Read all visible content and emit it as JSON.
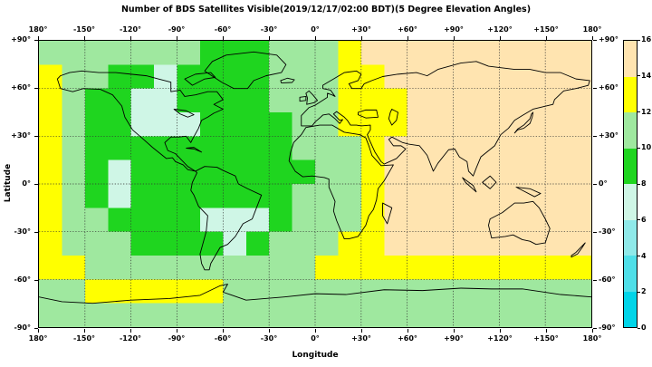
{
  "figure": {
    "title": "Number of BDS Satellites Visible(2019/12/17/02:00 BDT)(5 Degree Elevation Angles)"
  },
  "axes": {
    "x_label": "Longitude",
    "y_label": "Latitude",
    "lon_ticks": [
      {
        "v": -180,
        "label": "180°"
      },
      {
        "v": -150,
        "label": "-150°"
      },
      {
        "v": -120,
        "label": "-120°"
      },
      {
        "v": -90,
        "label": "-90°"
      },
      {
        "v": -60,
        "label": "-60°"
      },
      {
        "v": -30,
        "label": "-30°"
      },
      {
        "v": 0,
        "label": "0°"
      },
      {
        "v": 30,
        "label": "+30°"
      },
      {
        "v": 60,
        "label": "+60°"
      },
      {
        "v": 90,
        "label": "+90°"
      },
      {
        "v": 120,
        "label": "+120°"
      },
      {
        "v": 150,
        "label": "+150°"
      },
      {
        "v": 180,
        "label": "180°"
      }
    ],
    "lat_ticks": [
      {
        "v": 90,
        "label": "+90°"
      },
      {
        "v": 60,
        "label": "+60°"
      },
      {
        "v": 30,
        "label": "+30°"
      },
      {
        "v": 0,
        "label": "0°"
      },
      {
        "v": -30,
        "label": "-30°"
      },
      {
        "v": -60,
        "label": "-60°"
      },
      {
        "v": -90,
        "label": "-90°"
      }
    ]
  },
  "colorbar": {
    "min": 0,
    "max": 16,
    "band_width": 2,
    "tick_labels": [
      "16",
      "14",
      "12",
      "10",
      "8",
      "6",
      "4",
      "2",
      "0"
    ]
  },
  "chart_data": {
    "type": "heatmap",
    "title": "Number of BDS Satellites Visible(2019/12/17/02:00 BDT)(5 Degree Elevation Angles)",
    "xlabel": "Longitude",
    "ylabel": "Latitude",
    "x_range": [
      -180,
      180
    ],
    "y_range": [
      -90,
      90
    ],
    "value_range": [
      0,
      16
    ],
    "value_units": "visible BDS satellites",
    "cell_size_deg": 15,
    "grid_origin": "northwest (-180 lon, +90 lat)",
    "palette": [
      "#00D4E8",
      "#4FDFE8",
      "#8FE9E9",
      "#CFF6E6",
      "#1FD51F",
      "#9FE89F",
      "#FFFF00",
      "#FFE4B0"
    ],
    "coastline_color": "#000000",
    "grid_rows_north_to_south": [
      [
        11,
        11,
        11,
        11,
        11,
        11,
        11,
        9,
        9,
        9,
        11,
        11,
        11,
        13,
        15,
        15,
        15,
        15,
        15,
        15,
        15,
        15,
        15,
        15
      ],
      [
        13,
        11,
        11,
        9,
        9,
        7,
        9,
        9,
        9,
        9,
        11,
        11,
        11,
        13,
        13,
        15,
        15,
        15,
        15,
        15,
        15,
        15,
        15,
        15
      ],
      [
        13,
        11,
        9,
        9,
        7,
        7,
        9,
        9,
        9,
        9,
        11,
        11,
        11,
        13,
        13,
        13,
        15,
        15,
        15,
        15,
        15,
        15,
        15,
        15
      ],
      [
        13,
        11,
        9,
        9,
        7,
        7,
        7,
        9,
        9,
        9,
        9,
        11,
        11,
        13,
        13,
        13,
        15,
        15,
        15,
        15,
        15,
        15,
        15,
        15
      ],
      [
        13,
        11,
        9,
        9,
        9,
        9,
        9,
        9,
        9,
        9,
        9,
        11,
        11,
        11,
        13,
        15,
        15,
        15,
        15,
        15,
        15,
        15,
        15,
        15
      ],
      [
        13,
        11,
        9,
        7,
        9,
        9,
        9,
        9,
        9,
        9,
        9,
        9,
        11,
        11,
        13,
        15,
        15,
        15,
        15,
        15,
        15,
        15,
        15,
        15
      ],
      [
        13,
        11,
        9,
        7,
        9,
        9,
        9,
        9,
        9,
        9,
        9,
        11,
        11,
        11,
        13,
        15,
        15,
        15,
        15,
        15,
        15,
        15,
        15,
        15
      ],
      [
        13,
        11,
        11,
        9,
        9,
        9,
        9,
        7,
        7,
        7,
        9,
        11,
        11,
        11,
        13,
        15,
        15,
        15,
        15,
        15,
        15,
        15,
        15,
        15
      ],
      [
        13,
        11,
        11,
        11,
        9,
        9,
        9,
        9,
        7,
        9,
        11,
        11,
        11,
        13,
        13,
        15,
        15,
        15,
        15,
        15,
        15,
        15,
        15,
        15
      ],
      [
        13,
        13,
        11,
        11,
        11,
        11,
        11,
        11,
        11,
        11,
        11,
        11,
        13,
        13,
        13,
        13,
        13,
        13,
        13,
        13,
        13,
        13,
        13,
        13
      ],
      [
        11,
        11,
        13,
        13,
        13,
        13,
        13,
        13,
        11,
        11,
        11,
        11,
        11,
        11,
        11,
        11,
        11,
        11,
        11,
        11,
        11,
        11,
        11,
        11
      ],
      [
        11,
        11,
        11,
        11,
        11,
        11,
        11,
        11,
        11,
        11,
        11,
        11,
        11,
        11,
        11,
        11,
        11,
        11,
        11,
        11,
        11,
        11,
        11,
        11
      ]
    ],
    "coastlines": [
      {
        "name": "north-america",
        "closed": true,
        "pts": [
          -168,
          66,
          -166,
          60,
          -158,
          58,
          -151,
          60,
          -140,
          59.5,
          -132,
          56,
          -126,
          49,
          -124,
          42,
          -119,
          34,
          -113,
          29,
          -106,
          23,
          -97,
          16,
          -93,
          16.5,
          -91,
          14,
          -86,
          12,
          -83,
          9,
          -78,
          8,
          -83,
          11,
          -88,
          16,
          -91,
          19,
          -96,
          21,
          -98,
          26,
          -94,
          29.5,
          -89,
          29.5,
          -84,
          30,
          -81,
          26,
          -80,
          28,
          -76,
          35,
          -74,
          40,
          -70,
          42,
          -66,
          44.5,
          -60,
          47,
          -66,
          50,
          -60,
          53,
          -64,
          58,
          -70,
          58,
          -78,
          56,
          -85,
          55,
          -88,
          59,
          -94,
          58,
          -94,
          64,
          -102,
          66,
          -110,
          68,
          -120,
          69,
          -130,
          70,
          -141,
          70,
          -152,
          71,
          -160,
          70,
          -166,
          68
        ]
      },
      {
        "name": "south-america",
        "closed": true,
        "pts": [
          -78,
          8,
          -72,
          11,
          -64,
          10.5,
          -60,
          8.5,
          -52,
          5,
          -50,
          0,
          -44,
          -3,
          -35,
          -7,
          -37,
          -12,
          -39,
          -17,
          -41,
          -22,
          -47,
          -25,
          -52,
          -33,
          -57,
          -38,
          -62,
          -40,
          -65,
          -45,
          -68,
          -50,
          -69,
          -54,
          -72,
          -54,
          -74,
          -50,
          -75,
          -44,
          -73,
          -37,
          -71,
          -30,
          -70,
          -20,
          -76,
          -14,
          -79,
          -7,
          -81,
          -4,
          -80,
          1,
          -77,
          7
        ]
      },
      {
        "name": "greenland",
        "closed": true,
        "pts": [
          -53,
          60,
          -44,
          60,
          -40,
          65,
          -32,
          68,
          -22,
          70,
          -19,
          75,
          -25,
          81,
          -40,
          83,
          -58,
          81,
          -67,
          77,
          -72,
          71,
          -61,
          64
        ]
      },
      {
        "name": "africa",
        "closed": true,
        "pts": [
          -6,
          35.5,
          3,
          37,
          11,
          37,
          19,
          32.5,
          29,
          31,
          33,
          29,
          35,
          24,
          37,
          18,
          43,
          11.5,
          51,
          12,
          45,
          2,
          41,
          -3,
          40,
          -10,
          38,
          -16,
          35,
          -20,
          33,
          -26,
          28,
          -33,
          22,
          -34.5,
          19,
          -34.5,
          17,
          -30,
          14,
          -23,
          12,
          -17,
          13,
          -11,
          9,
          -2,
          9,
          3,
          6,
          4,
          -2,
          5,
          -8,
          4.5,
          -13,
          8,
          -17,
          14.5,
          -16,
          20,
          -14,
          26,
          -9,
          31
        ]
      },
      {
        "name": "eurasia",
        "closed": true,
        "pts": [
          -9,
          36.5,
          -9,
          43,
          -4,
          48,
          0,
          49.5,
          4,
          52,
          8,
          54.5,
          8,
          57,
          11,
          56,
          13,
          55,
          10,
          59,
          5,
          60,
          5,
          62,
          12,
          66,
          19,
          70,
          27,
          71,
          30,
          69,
          28,
          65,
          22,
          63,
          24,
          60,
          30,
          60,
          32,
          63,
          37,
          65,
          44,
          67.5,
          54,
          69,
          66,
          70,
          73,
          68,
          80,
          72,
          95,
          76,
          105,
          77,
          113,
          74,
          130,
          72,
          140,
          72,
          150,
          70,
          160,
          70,
          170,
          66,
          179,
          65,
          178,
          62,
          170,
          60,
          162,
          58.5,
          156,
          53,
          155,
          50,
          142,
          47,
          135,
          43,
          130,
          40,
          126,
          35,
          121,
          31,
          117,
          24,
          108,
          17,
          105,
          10,
          103,
          5,
          100,
          8,
          99,
          14,
          94,
          17,
          91,
          22,
          87,
          21.5,
          80,
          13,
          77,
          8,
          73,
          18,
          68,
          24,
          61,
          25,
          57,
          26,
          50,
          29.5,
          48,
          28,
          51,
          24,
          56,
          24,
          59,
          22,
          53,
          16,
          45,
          12.5,
          43,
          14,
          39,
          20,
          35,
          28.5,
          34,
          31,
          36,
          34,
          36,
          37,
          30,
          36.5,
          27,
          37,
          23,
          37,
          21,
          40,
          19,
          42,
          14,
          45.5,
          12,
          44,
          16,
          40,
          18,
          40.5,
          16,
          38,
          13,
          41,
          9,
          44,
          5,
          43.3,
          3,
          41.5,
          0,
          39,
          -2,
          36.5
        ]
      },
      {
        "name": "united-kingdom",
        "closed": true,
        "pts": [
          -5.5,
          50,
          -1,
          51,
          1.5,
          52.5,
          -1.5,
          56,
          -4,
          58.5,
          -6,
          57,
          -5,
          54
        ]
      },
      {
        "name": "ireland",
        "closed": true,
        "pts": [
          -10,
          52,
          -6,
          52.5,
          -6,
          55,
          -10,
          54.5
        ]
      },
      {
        "name": "iceland",
        "closed": true,
        "pts": [
          -22,
          63.5,
          -15,
          63.8,
          -13.5,
          65.5,
          -18,
          66.5,
          -22.5,
          65
        ]
      },
      {
        "name": "japan",
        "closed": true,
        "pts": [
          142,
          45,
          141.5,
          42,
          140,
          38,
          136,
          35,
          132,
          34,
          130,
          32,
          132,
          34.5,
          136,
          37,
          140,
          41,
          141,
          44
        ]
      },
      {
        "name": "australia",
        "closed": true,
        "pts": [
          114,
          -22,
          122,
          -18,
          130,
          -12,
          136,
          -12,
          142,
          -11,
          146,
          -15,
          150,
          -22,
          153,
          -28,
          150,
          -37,
          144,
          -38,
          140,
          -36,
          135,
          -35,
          129,
          -32,
          124,
          -33,
          115,
          -34,
          113,
          -26
        ]
      },
      {
        "name": "new-guinea",
        "closed": true,
        "pts": [
          131,
          -2,
          140,
          -3,
          147,
          -6,
          143,
          -8,
          135,
          -4
        ]
      },
      {
        "name": "borneo",
        "closed": true,
        "pts": [
          109,
          1,
          114,
          5,
          118,
          1,
          114,
          -3
        ]
      },
      {
        "name": "sumatra",
        "closed": true,
        "pts": [
          96,
          4,
          103,
          -1,
          105,
          -5,
          98,
          1
        ]
      },
      {
        "name": "madagascar",
        "closed": true,
        "pts": [
          44,
          -12,
          50,
          -15,
          47,
          -25,
          44,
          -20
        ]
      },
      {
        "name": "new-zealand",
        "closed": true,
        "pts": [
          167,
          -45,
          170,
          -43,
          174,
          -39,
          176,
          -37,
          174,
          -40,
          171,
          -44,
          167,
          -46
        ]
      },
      {
        "name": "cuba",
        "closed": true,
        "pts": [
          -84,
          22.5,
          -79,
          22,
          -74,
          20,
          -79,
          23
        ]
      },
      {
        "name": "baffin-island",
        "closed": true,
        "pts": [
          -80,
          62,
          -72,
          66,
          -65,
          67,
          -68,
          70,
          -78,
          69,
          -85,
          66
        ]
      },
      {
        "name": "great-lakes",
        "closed": true,
        "pts": [
          -92,
          47,
          -84,
          46,
          -79,
          43.5,
          -83,
          42,
          -88,
          44
        ]
      },
      {
        "name": "caspian-sea",
        "closed": true,
        "pts": [
          50,
          47,
          54,
          45,
          53,
          40,
          50,
          37,
          48,
          41,
          49,
          45
        ]
      },
      {
        "name": "black-sea",
        "closed": true,
        "pts": [
          28,
          45,
          33,
          46.5,
          40,
          46.5,
          41,
          42,
          33,
          41.5,
          28,
          43.5
        ]
      },
      {
        "name": "antarctica",
        "closed": false,
        "pts": [
          -180,
          -71,
          -165,
          -74,
          -145,
          -75,
          -120,
          -73,
          -95,
          -72,
          -75,
          -70,
          -62,
          -64,
          -57,
          -63,
          -60,
          -68,
          -45,
          -73,
          -20,
          -71,
          0,
          -69,
          20,
          -69.5,
          45,
          -66.5,
          70,
          -67,
          95,
          -65.5,
          115,
          -66,
          135,
          -66,
          160,
          -69.5,
          180,
          -71
        ]
      }
    ]
  }
}
